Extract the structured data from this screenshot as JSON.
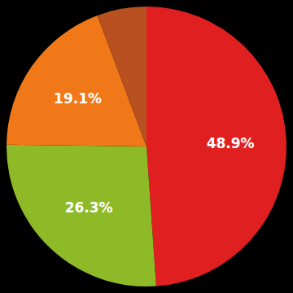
{
  "chart_data": {
    "type": "pie",
    "values": [
      48.9,
      26.3,
      19.1,
      5.7
    ],
    "value_labels": [
      "48.9%",
      "26.3%",
      "19.1%",
      null
    ],
    "colors": [
      "#e02020",
      "#8fba28",
      "#f07818",
      "#b85020"
    ],
    "data_labels": true
  }
}
